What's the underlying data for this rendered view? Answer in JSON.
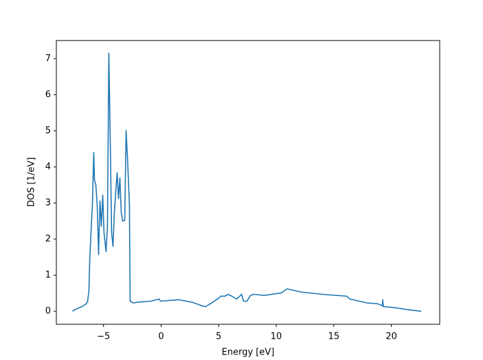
{
  "chart_data": {
    "type": "line",
    "xlabel": "Energy [eV]",
    "ylabel": "DOS [1/eV]",
    "xlim": [
      -9.1,
      24.2
    ],
    "ylim": [
      -0.36,
      7.5
    ],
    "xticks": [
      {
        "value": -5,
        "label": "−5"
      },
      0,
      5,
      10,
      15,
      20
    ],
    "yticks": [
      0,
      1,
      2,
      3,
      4,
      5,
      6,
      7
    ],
    "series": [
      {
        "color": "#1f77b4",
        "x": [
          -7.7,
          -7.46,
          -6.87,
          -6.57,
          -6.39,
          -6.27,
          -6.2,
          -6.09,
          -5.97,
          -5.85,
          -5.79,
          -5.67,
          -5.55,
          -5.43,
          -5.31,
          -5.19,
          -5.07,
          -4.96,
          -4.78,
          -4.66,
          -4.54,
          -4.42,
          -4.3,
          -4.18,
          -4.06,
          -3.94,
          -3.82,
          -3.7,
          -3.58,
          -3.46,
          -3.34,
          -3.16,
          -3.04,
          -2.92,
          -2.75,
          -2.69,
          -2.39,
          -2.09,
          -0.9,
          -0.18,
          -0.06,
          1.5,
          2.7,
          3.58,
          3.88,
          4.48,
          4.9,
          5.2,
          5.55,
          5.85,
          6.57,
          7.0,
          7.16,
          7.46,
          7.76,
          8.06,
          8.96,
          10.45,
          10.93,
          12.24,
          14.0,
          16.1,
          16.4,
          17.9,
          18.8,
          19.22,
          19.25,
          19.3,
          20.3,
          21.5,
          22.6
        ],
        "values": [
          0,
          0.05,
          0.13,
          0.19,
          0.26,
          0.57,
          1.42,
          2.18,
          2.93,
          4.4,
          3.65,
          3.5,
          2.93,
          1.57,
          3.06,
          2.36,
          3.22,
          2.18,
          1.65,
          2.36,
          7.15,
          4.82,
          2.18,
          1.8,
          2.74,
          3.3,
          3.84,
          3.12,
          3.69,
          2.74,
          2.5,
          2.52,
          5.01,
          4.25,
          2.93,
          0.28,
          0.23,
          0.25,
          0.28,
          0.34,
          0.28,
          0.32,
          0.25,
          0.15,
          0.13,
          0.25,
          0.34,
          0.42,
          0.42,
          0.47,
          0.34,
          0.47,
          0.28,
          0.28,
          0.44,
          0.47,
          0.44,
          0.51,
          0.62,
          0.53,
          0.47,
          0.42,
          0.34,
          0.23,
          0.21,
          0.15,
          0.32,
          0.13,
          0.1,
          0.04,
          0
        ]
      }
    ]
  }
}
